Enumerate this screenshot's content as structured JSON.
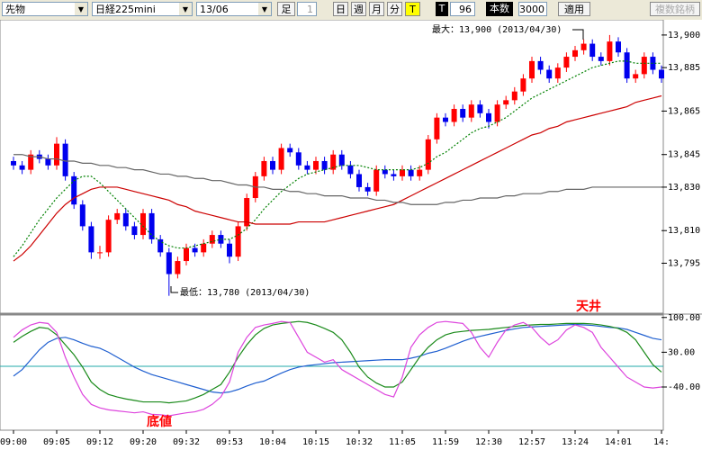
{
  "toolbar": {
    "market": "先物",
    "symbol": "日経225mini",
    "month": "13/06",
    "ashi": "足",
    "ashi_value": 1,
    "buttons": [
      "日",
      "週",
      "月",
      "分",
      "T"
    ],
    "t_label": "T",
    "count": 96,
    "count_label": "本数",
    "bars": 3000,
    "apply": "適用",
    "multi": "複数銘柄"
  },
  "chart_data": [
    {
      "type": "candlestick",
      "categories": [
        "09:00",
        null,
        null,
        null,
        null,
        "09:05",
        null,
        null,
        null,
        null,
        "09:12",
        null,
        null,
        null,
        null,
        "09:20",
        null,
        null,
        null,
        null,
        "09:32",
        null,
        null,
        null,
        null,
        "09:53",
        null,
        null,
        null,
        null,
        "10:04",
        null,
        null,
        null,
        null,
        "10:15",
        null,
        null,
        null,
        null,
        "10:32",
        null,
        null,
        null,
        null,
        "11:05",
        null,
        null,
        null,
        null,
        "11:59",
        null,
        null,
        null,
        null,
        "12:30",
        null,
        null,
        null,
        null,
        "12:57",
        null,
        null,
        null,
        null,
        "13:24",
        null,
        null,
        null,
        null,
        "14:01",
        null,
        null,
        null,
        null,
        "14:"
      ],
      "open": [
        13842,
        13840,
        13838,
        13845,
        13843,
        13840,
        13850,
        13835,
        13822,
        13812,
        13800,
        13800,
        13815,
        13818,
        13812,
        13808,
        13818,
        13806,
        13800,
        13790,
        13796,
        13802,
        13800,
        13804,
        13808,
        13804,
        13798,
        13812,
        13825,
        13835,
        13842,
        13838,
        13848,
        13846,
        13840,
        13838,
        13842,
        13838,
        13845,
        13840,
        13836,
        13830,
        13828,
        13838,
        13836,
        13835,
        13838,
        13835,
        13838,
        13852,
        13862,
        13860,
        13866,
        13862,
        13868,
        13864,
        13860,
        13868,
        13870,
        13874,
        13880,
        13888,
        13884,
        13880,
        13885,
        13890,
        13893,
        13896,
        13890,
        13888,
        13897,
        13892,
        13880,
        13882,
        13890,
        13884
      ],
      "high": [
        13844,
        13842,
        13847,
        13847,
        13845,
        13853,
        13852,
        13837,
        13824,
        13814,
        13803,
        13817,
        13820,
        13820,
        13814,
        13820,
        13820,
        13808,
        13802,
        13798,
        13804,
        13804,
        13806,
        13810,
        13810,
        13806,
        13814,
        13827,
        13837,
        13844,
        13844,
        13850,
        13850,
        13848,
        13842,
        13844,
        13844,
        13847,
        13847,
        13842,
        13838,
        13832,
        13840,
        13840,
        13838,
        13840,
        13840,
        13840,
        13854,
        13864,
        13864,
        13868,
        13868,
        13870,
        13870,
        13866,
        13870,
        13872,
        13876,
        13882,
        13890,
        13890,
        13886,
        13887,
        13892,
        13895,
        13898,
        13898,
        13892,
        13900,
        13899,
        13894,
        13884,
        13892,
        13892,
        13886
      ],
      "low": [
        13838,
        13836,
        13836,
        13841,
        13838,
        13838,
        13833,
        13820,
        13810,
        13797,
        13797,
        13798,
        13813,
        13810,
        13806,
        13806,
        13804,
        13798,
        13780,
        13788,
        13794,
        13798,
        13798,
        13802,
        13802,
        13795,
        13796,
        13810,
        13823,
        13833,
        13836,
        13836,
        13844,
        13838,
        13836,
        13836,
        13836,
        13836,
        13838,
        13834,
        13828,
        13826,
        13826,
        13834,
        13833,
        13833,
        13833,
        13833,
        13836,
        13850,
        13858,
        13858,
        13860,
        13860,
        13862,
        13857,
        13858,
        13866,
        13868,
        13872,
        13878,
        13882,
        13878,
        13878,
        13883,
        13888,
        13891,
        13888,
        13886,
        13886,
        13890,
        13878,
        13878,
        13880,
        13882,
        13878
      ],
      "close": [
        13840,
        13838,
        13845,
        13843,
        13840,
        13850,
        13835,
        13822,
        13812,
        13800,
        13800,
        13815,
        13818,
        13812,
        13808,
        13818,
        13806,
        13800,
        13790,
        13796,
        13802,
        13800,
        13804,
        13808,
        13804,
        13798,
        13812,
        13825,
        13835,
        13842,
        13838,
        13848,
        13846,
        13840,
        13838,
        13842,
        13838,
        13845,
        13840,
        13836,
        13830,
        13828,
        13838,
        13836,
        13835,
        13838,
        13835,
        13838,
        13852,
        13862,
        13860,
        13866,
        13862,
        13868,
        13864,
        13860,
        13868,
        13870,
        13874,
        13880,
        13888,
        13884,
        13880,
        13885,
        13890,
        13893,
        13896,
        13890,
        13888,
        13897,
        13892,
        13880,
        13882,
        13890,
        13884,
        13880
      ],
      "up_color": "#ff0000",
      "down_color": "#0000ee",
      "series": [
        {
          "color": "#008000",
          "dashed": true,
          "values": [
            13798,
            13803,
            13809,
            13815,
            13820,
            13825,
            13829,
            13833,
            13835,
            13835,
            13832,
            13828,
            13824,
            13820,
            13816,
            13812,
            13808,
            13805,
            13803,
            13802,
            13802,
            13803,
            13804,
            13805,
            13806,
            13806,
            13808,
            13811,
            13815,
            13820,
            13824,
            13828,
            13831,
            13834,
            13836,
            13837,
            13838,
            13839,
            13840,
            13840,
            13840,
            13839,
            13838,
            13838,
            13838,
            13838,
            13838,
            13839,
            13841,
            13844,
            13846,
            13849,
            13852,
            13855,
            13857,
            13858,
            13860,
            13862,
            13865,
            13868,
            13871,
            13873,
            13875,
            13877,
            13879,
            13881,
            13883,
            13885,
            13886,
            13887,
            13888,
            13888,
            13887,
            13887,
            13887,
            13887
          ]
        },
        {
          "color": "#cc0000",
          "dashed": false,
          "values": [
            13796,
            13799,
            13803,
            13808,
            13813,
            13818,
            13822,
            13825,
            13827,
            13829,
            13830,
            13830,
            13830,
            13829,
            13828,
            13827,
            13826,
            13825,
            13824,
            13822,
            13821,
            13819,
            13818,
            13817,
            13816,
            13815,
            13814,
            13814,
            13813,
            13813,
            13813,
            13813,
            13813,
            13814,
            13814,
            13814,
            13814,
            13815,
            13816,
            13817,
            13818,
            13819,
            13820,
            13821,
            13822,
            13824,
            13826,
            13828,
            13830,
            13832,
            13834,
            13836,
            13838,
            13840,
            13842,
            13844,
            13846,
            13848,
            13850,
            13852,
            13854,
            13855,
            13857,
            13858,
            13860,
            13861,
            13862,
            13863,
            13864,
            13865,
            13866,
            13867,
            13869,
            13870,
            13871,
            13872
          ]
        },
        {
          "color": "#666666",
          "dashed": false,
          "values": [
            13845,
            13845,
            13844,
            13844,
            13843,
            13843,
            13842,
            13842,
            13841,
            13841,
            13840,
            13840,
            13839,
            13839,
            13838,
            13838,
            13837,
            13836,
            13836,
            13835,
            13835,
            13834,
            13834,
            13833,
            13833,
            13832,
            13831,
            13831,
            13830,
            13830,
            13829,
            13829,
            13828,
            13828,
            13827,
            13827,
            13826,
            13826,
            13826,
            13825,
            13825,
            13825,
            13824,
            13824,
            13823,
            13823,
            13822,
            13822,
            13822,
            13822,
            13823,
            13823,
            13824,
            13824,
            13825,
            13825,
            13825,
            13826,
            13826,
            13827,
            13827,
            13827,
            13828,
            13828,
            13829,
            13829,
            13829,
            13830,
            13830,
            13830,
            13830,
            13830,
            13830,
            13830,
            13830,
            13830
          ]
        }
      ],
      "ylim": [
        13772,
        13907
      ],
      "yticks": [
        {
          "value": 13900,
          "label": "13,900"
        },
        {
          "value": 13885,
          "label": "13,885"
        },
        {
          "value": 13865,
          "label": "13,865"
        },
        {
          "value": 13845,
          "label": "13,845"
        },
        {
          "value": 13830,
          "label": "13,830"
        },
        {
          "value": 13810,
          "label": "13,810"
        },
        {
          "value": 13795,
          "label": "13,795"
        }
      ],
      "annotations": [
        "最大：13,900 (2013/04/30)",
        "最低：13,780 (2013/04/30)"
      ]
    },
    {
      "type": "line",
      "series": [
        {
          "color": "#1f5fd0",
          "values": [
            -18,
            -5,
            15,
            35,
            50,
            58,
            60,
            55,
            48,
            42,
            38,
            30,
            20,
            10,
            0,
            -8,
            -15,
            -20,
            -25,
            -30,
            -35,
            -40,
            -45,
            -50,
            -52,
            -50,
            -45,
            -38,
            -32,
            -28,
            -20,
            -12,
            -5,
            0,
            3,
            5,
            7,
            9,
            10,
            11,
            12,
            13,
            14,
            15,
            15,
            15,
            18,
            22,
            28,
            32,
            38,
            45,
            52,
            58,
            62,
            66,
            70,
            74,
            77,
            80,
            81,
            82,
            83,
            84,
            85,
            86,
            85,
            84,
            82,
            80,
            79,
            76,
            70,
            64,
            58,
            55
          ]
        },
        {
          "color": "#1a8a1a",
          "values": [
            50,
            62,
            72,
            80,
            78,
            65,
            45,
            25,
            0,
            -30,
            -45,
            -55,
            -60,
            -64,
            -67,
            -70,
            -70,
            -70,
            -72,
            -70,
            -68,
            -62,
            -55,
            -45,
            -35,
            -10,
            20,
            45,
            65,
            78,
            85,
            88,
            90,
            92,
            90,
            85,
            78,
            70,
            55,
            30,
            0,
            -20,
            -32,
            -40,
            -40,
            -30,
            -5,
            20,
            40,
            55,
            65,
            70,
            72,
            74,
            75,
            76,
            78,
            80,
            82,
            84,
            85,
            86,
            86,
            87,
            88,
            88,
            88,
            87,
            85,
            82,
            78,
            70,
            55,
            30,
            5,
            -10
          ]
        },
        {
          "color": "#dd44dd",
          "values": [
            60,
            75,
            85,
            90,
            88,
            70,
            20,
            -20,
            -55,
            -75,
            -82,
            -86,
            -88,
            -90,
            -92,
            -90,
            -95,
            -96,
            -98,
            -95,
            -92,
            -90,
            -85,
            -75,
            -60,
            -30,
            30,
            60,
            80,
            85,
            88,
            92,
            90,
            60,
            30,
            20,
            10,
            15,
            -5,
            -15,
            -25,
            -35,
            -45,
            -55,
            -60,
            -20,
            40,
            65,
            80,
            90,
            92,
            90,
            88,
            70,
            40,
            20,
            50,
            75,
            85,
            90,
            80,
            60,
            45,
            55,
            75,
            85,
            80,
            70,
            40,
            20,
            0,
            -20,
            -30,
            -40,
            -42,
            -40
          ]
        }
      ],
      "ylim": [
        -127,
        105
      ],
      "yticks": [
        {
          "value": 100,
          "label": "100.00"
        },
        {
          "value": 30,
          "label": "30.00"
        },
        {
          "value": -40,
          "label": "-40.00"
        }
      ],
      "annotations": [
        "天井",
        "底値"
      ]
    }
  ]
}
